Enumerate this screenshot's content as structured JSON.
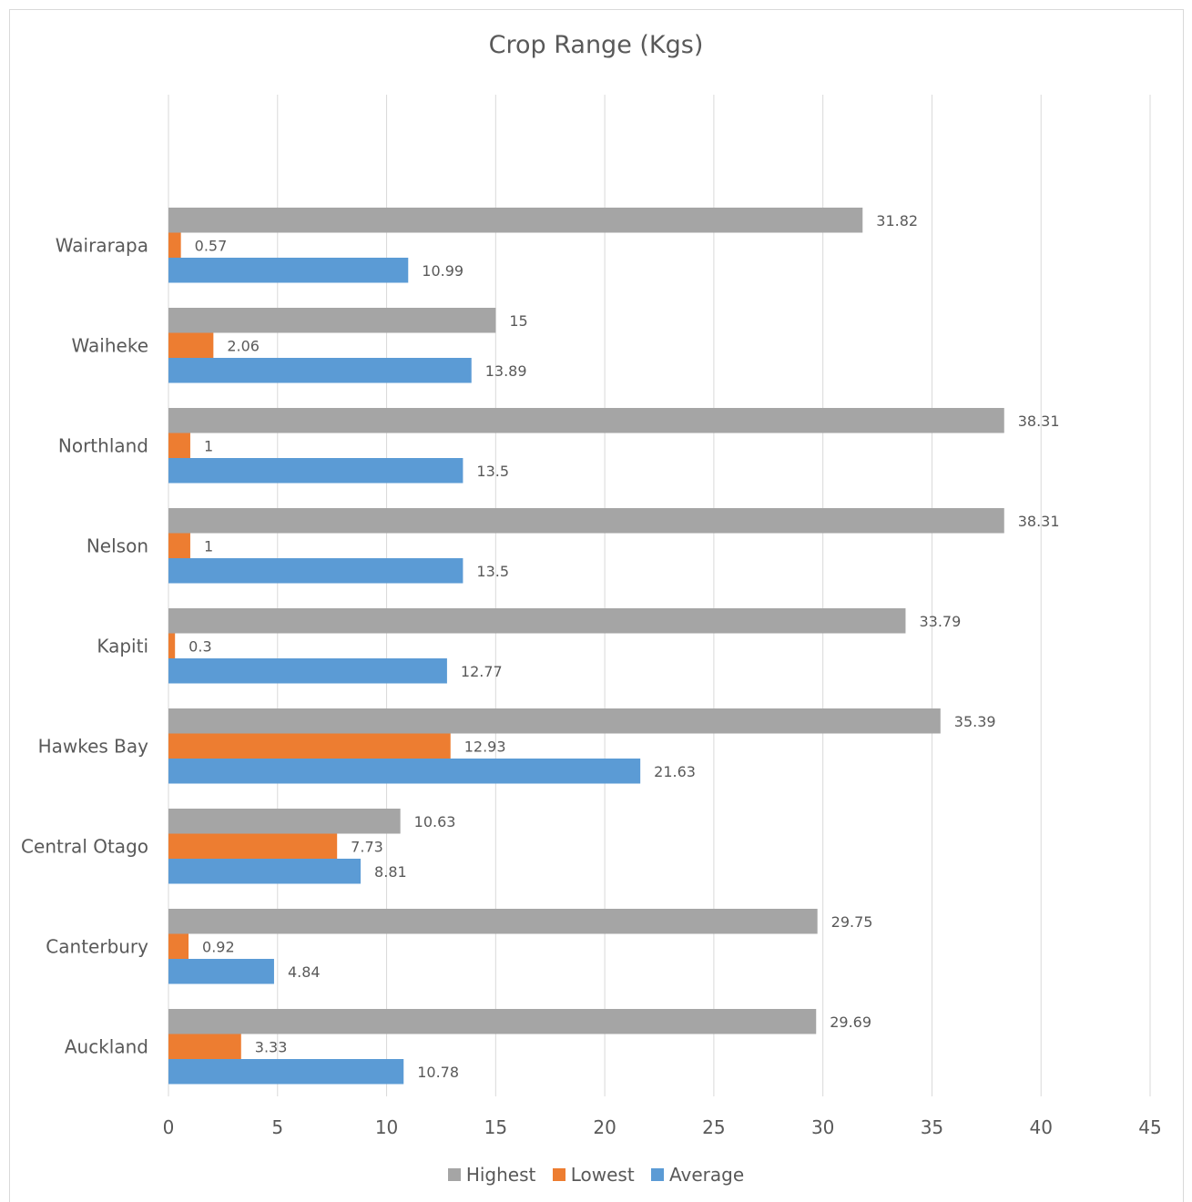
{
  "chart_data": {
    "type": "bar",
    "orientation": "horizontal",
    "title": "Crop Range (Kgs)",
    "xlabel": "",
    "ylabel": "",
    "xlim": [
      0,
      45
    ],
    "x_ticks": [
      "0",
      "5",
      "10",
      "15",
      "20",
      "25",
      "30",
      "35",
      "40",
      "45"
    ],
    "grid": "vertical",
    "legend_position": "bottom",
    "categories": [
      "Wairarapa",
      "Waiheke",
      "Northland",
      "Nelson",
      "Kapiti",
      "Hawkes Bay",
      "Central Otago",
      "Canterbury",
      "Auckland"
    ],
    "series": [
      {
        "name": "Highest",
        "color": "#a5a5a5",
        "values": [
          31.82,
          15,
          38.31,
          38.31,
          33.79,
          35.39,
          10.63,
          29.75,
          29.69
        ],
        "labels": [
          "31.82",
          "15",
          "38.31",
          "38.31",
          "33.79",
          "35.39",
          "10.63",
          "29.75",
          "29.69"
        ]
      },
      {
        "name": "Lowest",
        "color": "#ed7d31",
        "values": [
          0.57,
          2.06,
          1,
          1,
          0.3,
          12.93,
          7.73,
          0.92,
          3.33
        ],
        "labels": [
          "0.57",
          "2.06",
          "1",
          "1",
          "0.3",
          "12.93",
          "7.73",
          "0.92",
          "3.33"
        ]
      },
      {
        "name": "Average",
        "color": "#5b9bd5",
        "values": [
          10.99,
          13.89,
          13.5,
          13.5,
          12.77,
          21.63,
          8.81,
          4.84,
          10.78
        ],
        "labels": [
          "10.99",
          "13.89",
          "13.5",
          "13.5",
          "12.77",
          "21.63",
          "8.81",
          "4.84",
          "10.78"
        ]
      }
    ]
  }
}
